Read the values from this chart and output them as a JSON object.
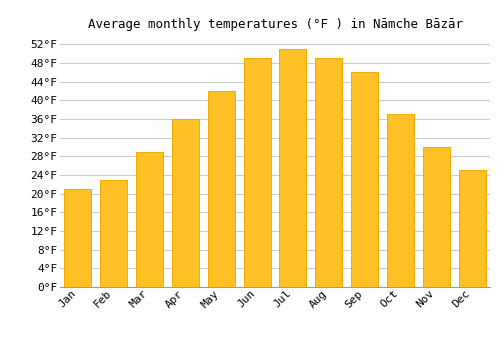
{
  "title": "Average monthly temperatures (°F ) in Nāmche Bāzār",
  "months": [
    "Jan",
    "Feb",
    "Mar",
    "Apr",
    "May",
    "Jun",
    "Jul",
    "Aug",
    "Sep",
    "Oct",
    "Nov",
    "Dec"
  ],
  "values": [
    21,
    23,
    29,
    36,
    42,
    49,
    51,
    49,
    46,
    37,
    30,
    25
  ],
  "bar_color": "#FFC125",
  "bar_edge_color": "#F5A800",
  "background_color": "#ffffff",
  "grid_color": "#cccccc",
  "ytick_labels": [
    "0°F",
    "4°F",
    "8°F",
    "12°F",
    "16°F",
    "20°F",
    "24°F",
    "28°F",
    "32°F",
    "36°F",
    "40°F",
    "44°F",
    "48°F",
    "52°F"
  ],
  "ytick_values": [
    0,
    4,
    8,
    12,
    16,
    20,
    24,
    28,
    32,
    36,
    40,
    44,
    48,
    52
  ],
  "ylim": [
    0,
    54
  ],
  "title_fontsize": 9,
  "tick_fontsize": 8,
  "font_family": "monospace"
}
